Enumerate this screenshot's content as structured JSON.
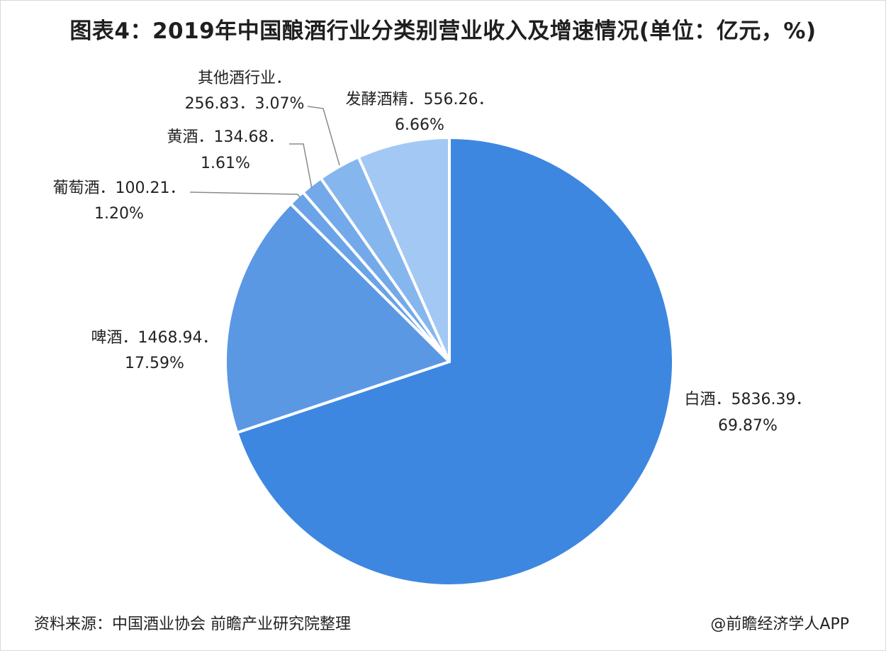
{
  "header": {
    "title": "图表4：2019年中国酿酒行业分类别营业收入及增速情况(单位：亿元，%)"
  },
  "footer": {
    "source": "资料来源：中国酒业协会 前瞻产业研究院整理",
    "credit": "@前瞻经济学人APP"
  },
  "chart_data": {
    "type": "pie",
    "title": "图表4：2019年中国酿酒行业分类别营业收入及增速情况(单位：亿元，%)",
    "categories": [
      "白酒",
      "啤酒",
      "葡萄酒",
      "黄酒",
      "其他酒行业",
      "发酵酒精"
    ],
    "values": [
      5836.39,
      1468.94,
      100.21,
      134.68,
      256.83,
      556.26
    ],
    "percents": [
      "69.87%",
      "17.59%",
      "1.20%",
      "1.61%",
      "3.07%",
      "6.66%"
    ],
    "labels": [
      {
        "line1": "白酒．5836.39．",
        "line2": "69.87%"
      },
      {
        "line1": "啤酒．1468.94．",
        "line2": "17.59%"
      },
      {
        "line1": "葡萄酒．100.21．",
        "line2": "1.20%"
      },
      {
        "line1": "黄酒．134.68．",
        "line2": "1.61%"
      },
      {
        "line1": "其他酒行业．",
        "line2": "256.83．3.07%"
      },
      {
        "line1": "发酵酒精．556.26．",
        "line2": "6.66%"
      }
    ],
    "colors": [
      "#3d87e0",
      "#5a98e4",
      "#6aa3e8",
      "#73a9ea",
      "#86b6ee",
      "#a3c8f4"
    ],
    "legend": "none"
  }
}
